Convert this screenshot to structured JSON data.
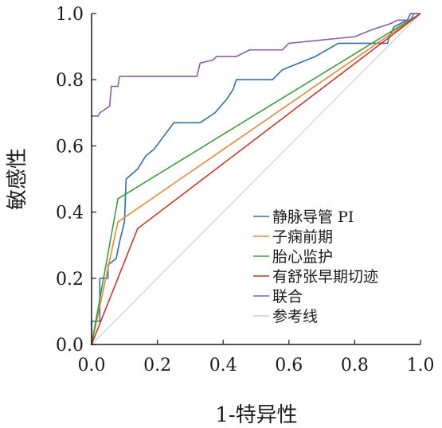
{
  "chart_data": {
    "type": "line",
    "title": "",
    "xlabel": "1-特异性",
    "ylabel": "敏感性",
    "xlim": [
      0,
      1
    ],
    "ylim": [
      0,
      1
    ],
    "x_ticks": [
      "0.0",
      "0.2",
      "0.4",
      "0.6",
      "0.8",
      "1.0"
    ],
    "y_ticks": [
      "0.0",
      "0.2",
      "0.4",
      "0.6",
      "0.8",
      "1.0"
    ],
    "grid": false,
    "legend_position": "right",
    "series": [
      {
        "name": "静脉导管 PI",
        "color": "#2f6fa6",
        "points": [
          [
            0,
            0
          ],
          [
            0,
            0.07
          ],
          [
            0.025,
            0.07
          ],
          [
            0.025,
            0.2
          ],
          [
            0.05,
            0.2
          ],
          [
            0.05,
            0.24
          ],
          [
            0.075,
            0.26
          ],
          [
            0.085,
            0.31
          ],
          [
            0.1,
            0.37
          ],
          [
            0.105,
            0.5
          ],
          [
            0.14,
            0.53
          ],
          [
            0.165,
            0.57
          ],
          [
            0.19,
            0.59
          ],
          [
            0.22,
            0.63
          ],
          [
            0.25,
            0.67
          ],
          [
            0.33,
            0.67
          ],
          [
            0.375,
            0.7
          ],
          [
            0.41,
            0.74
          ],
          [
            0.43,
            0.77
          ],
          [
            0.44,
            0.8
          ],
          [
            0.55,
            0.8
          ],
          [
            0.58,
            0.83
          ],
          [
            0.68,
            0.87
          ],
          [
            0.75,
            0.91
          ],
          [
            0.82,
            0.91
          ],
          [
            0.9,
            0.91
          ],
          [
            0.905,
            0.93
          ],
          [
            0.92,
            0.96
          ],
          [
            0.96,
            0.98
          ],
          [
            0.97,
            1.0
          ],
          [
            1.0,
            1.0
          ]
        ]
      },
      {
        "name": "子痫前期",
        "color": "#e08a3c",
        "points": [
          [
            0,
            0
          ],
          [
            0.08,
            0.37
          ],
          [
            1.0,
            1.0
          ]
        ]
      },
      {
        "name": "胎心监护",
        "color": "#3e9a3e",
        "points": [
          [
            0,
            0
          ],
          [
            0.08,
            0.44
          ],
          [
            1.0,
            1.0
          ]
        ]
      },
      {
        "name": "有舒张早期切迹",
        "color": "#c0392b",
        "points": [
          [
            0,
            0
          ],
          [
            0.14,
            0.35
          ],
          [
            1.0,
            1.0
          ]
        ]
      },
      {
        "name": "联合",
        "color": "#8a5ca8",
        "points": [
          [
            0,
            0.69
          ],
          [
            0.02,
            0.69
          ],
          [
            0.025,
            0.7
          ],
          [
            0.04,
            0.71
          ],
          [
            0.055,
            0.72
          ],
          [
            0.06,
            0.78
          ],
          [
            0.08,
            0.78
          ],
          [
            0.085,
            0.81
          ],
          [
            0.32,
            0.81
          ],
          [
            0.33,
            0.85
          ],
          [
            0.37,
            0.86
          ],
          [
            0.38,
            0.87
          ],
          [
            0.44,
            0.87
          ],
          [
            0.48,
            0.89
          ],
          [
            0.58,
            0.89
          ],
          [
            0.6,
            0.91
          ],
          [
            0.8,
            0.93
          ],
          [
            0.85,
            0.95
          ],
          [
            0.91,
            0.97
          ],
          [
            0.93,
            0.98
          ],
          [
            0.97,
            0.98
          ],
          [
            0.98,
            1.0
          ],
          [
            1.0,
            1.0
          ]
        ]
      },
      {
        "name": "参考线",
        "color": "#c8c8c8",
        "points": [
          [
            0,
            0
          ],
          [
            1.0,
            1.0
          ]
        ]
      }
    ]
  }
}
